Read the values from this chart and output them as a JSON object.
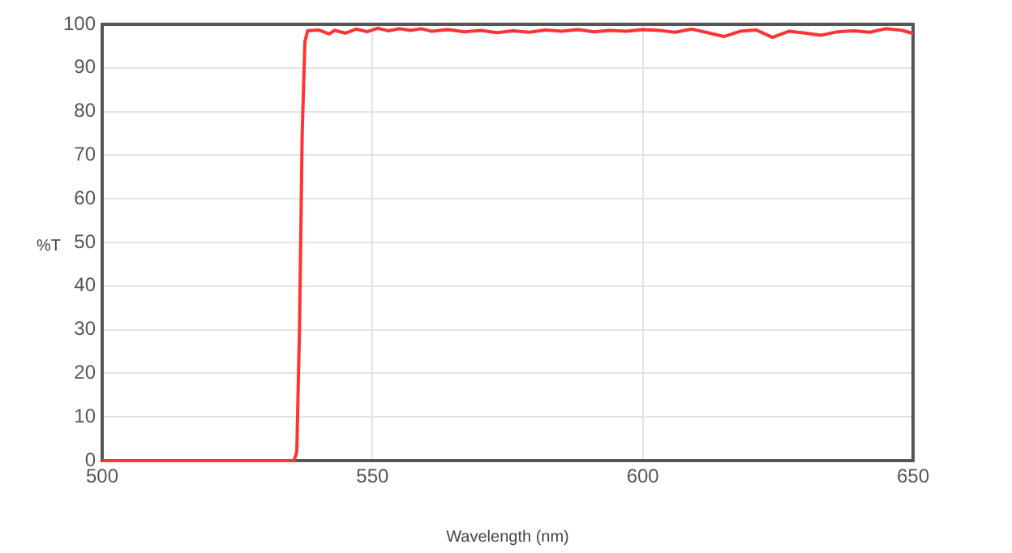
{
  "chart_data": {
    "type": "line",
    "xlabel": "Wavelength (nm)",
    "ylabel": "%T",
    "x": [
      500,
      535.5,
      536,
      536.5,
      537,
      537.5,
      538,
      540,
      542,
      543,
      545,
      547,
      549,
      551,
      553,
      555,
      557,
      559,
      561,
      564,
      567,
      570,
      573,
      576,
      579,
      582,
      585,
      588,
      591,
      594,
      597,
      600,
      603,
      606,
      609,
      612,
      615,
      618,
      621,
      624,
      627,
      630,
      633,
      636,
      639,
      642,
      645,
      648,
      650
    ],
    "series": [
      {
        "color": "#ff3333",
        "values": [
          0,
          0,
          2,
          30,
          75,
          96,
          98.5,
          98.7,
          97.8,
          98.6,
          98,
          98.9,
          98.3,
          99.1,
          98.5,
          99,
          98.6,
          99,
          98.4,
          98.8,
          98.3,
          98.6,
          98.1,
          98.5,
          98.2,
          98.7,
          98.4,
          98.8,
          98.3,
          98.6,
          98.4,
          98.8,
          98.6,
          98.2,
          98.9,
          98.1,
          97.2,
          98.4,
          98.7,
          97,
          98.4,
          98,
          97.5,
          98.3,
          98.5,
          98.2,
          99,
          98.6,
          97.9
        ]
      }
    ],
    "xlim": [
      500,
      650
    ],
    "xticks": [
      500,
      550,
      600,
      650
    ],
    "ylim": [
      0,
      100
    ],
    "yticks": [
      0,
      10,
      20,
      30,
      40,
      50,
      60,
      70,
      80,
      90,
      100
    ],
    "grid": true,
    "marker": "none",
    "line_style": "solid",
    "legend": false
  }
}
